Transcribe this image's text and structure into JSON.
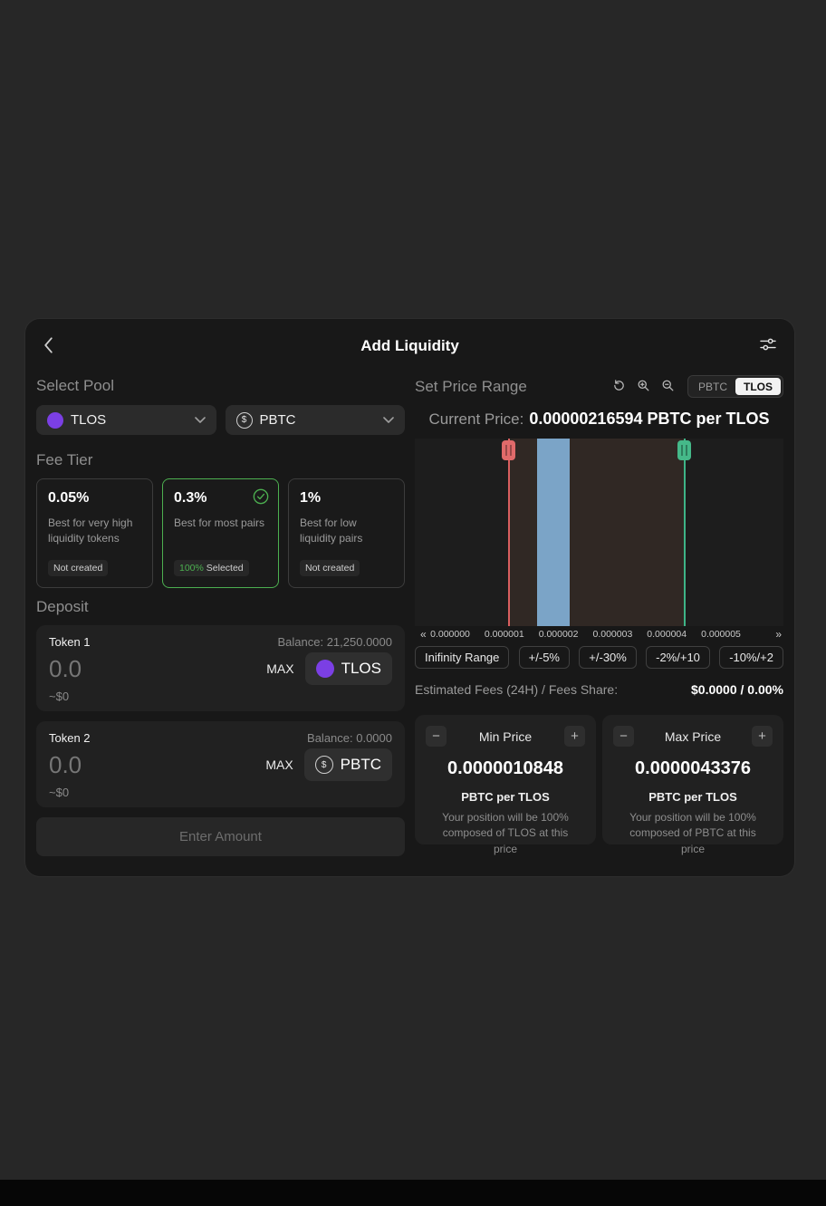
{
  "icons": {
    "dollar": "$",
    "minus": "−",
    "plus": "+",
    "pan_left": "«",
    "pan_right": "»"
  },
  "header": {
    "title": "Add Liquidity"
  },
  "pool": {
    "heading": "Select Pool",
    "token1": "TLOS",
    "token2": "PBTC"
  },
  "fee_tier": {
    "heading": "Fee Tier",
    "options": [
      {
        "percent": "0.05%",
        "description": "Best for very high liquidity tokens",
        "badge": "Not created"
      },
      {
        "percent": "0.3%",
        "description": "Best for most pairs",
        "badge_pct": "100%",
        "badge_text": "Selected"
      },
      {
        "percent": "1%",
        "description": "Best for low liquidity pairs",
        "badge": "Not created"
      }
    ]
  },
  "deposit": {
    "heading": "Deposit",
    "rows": [
      {
        "label": "Token 1",
        "balance": "Balance: 21,250.0000",
        "amount": "0.0",
        "max_label": "MAX",
        "token": "TLOS",
        "usd": "~$0"
      },
      {
        "label": "Token 2",
        "balance": "Balance: 0.0000",
        "amount": "0.0",
        "max_label": "MAX",
        "token": "PBTC",
        "usd": "~$0"
      }
    ],
    "submit_label": "Enter Amount"
  },
  "price_range": {
    "heading": "Set Price Range",
    "toggle": {
      "options": [
        "PBTC",
        "TLOS"
      ],
      "active": "TLOS"
    },
    "current_price_label": "Current Price:",
    "current_price_value": "0.00000216594 PBTC per TLOS",
    "presets": [
      "Inifinity Range",
      "+/-5%",
      "+/-30%",
      "-2%/+10",
      "-10%/+2"
    ],
    "fees_label": "Estimated Fees (24H) / Fees Share:",
    "fees_value": "$0.0000 / 0.00%",
    "min_card": {
      "title": "Min Price",
      "value": "0.0000010848",
      "unit": "PBTC per TLOS",
      "note": "Your position will be 100% composed of TLOS at this price"
    },
    "max_card": {
      "title": "Max Price",
      "value": "0.0000043376",
      "unit": "PBTC per TLOS",
      "note": "Your position will be 100% composed of PBTC at this price"
    }
  },
  "chart_data": {
    "type": "area",
    "x_axis_labels": [
      "0.000000",
      "0.000001",
      "0.000002",
      "0.000003",
      "0.000004",
      "0.000005"
    ],
    "min_price": 1.0848e-06,
    "max_price": 4.3376e-06,
    "current_price": 2.16594e-06,
    "liquidity_bar_range": [
      1.6e-06,
      2.2e-06
    ],
    "colors": {
      "accent_green": "#4caf50",
      "token_purple": "#7b3fe4",
      "min_handle": "#e06a6a",
      "max_handle": "#45b989",
      "liquidity": "#7ba4c7"
    }
  }
}
